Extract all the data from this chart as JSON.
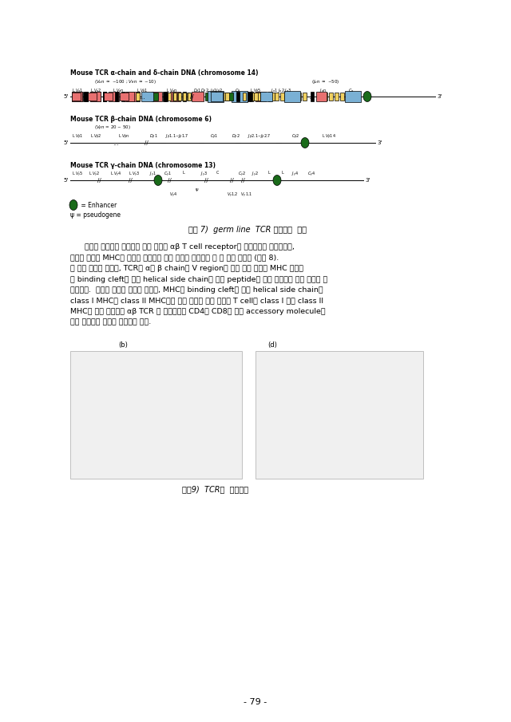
{
  "bg_color": "#ffffff",
  "title1": "Mouse TCR α-chain and δ-chain DNA (chromosome 14)",
  "title2": "Mouse TCR β-chain DNA (chromosome 6)",
  "title3": "Mouse TCR γ-chain DNA (chromosome 13)",
  "figure_caption1": "그림 7)  germ line  TCR 유전자의  구조",
  "figure_caption2": "그림9)  TCR의  입체구조",
  "page_number": "- 79 -",
  "legend1_text": " = Enhancer",
  "legend2_text": "ψ = pseudogene",
  "korean_text": [
    "최근에 세포막에 결합되어 있는 상태의 αβ T cell receptor의 입체구조가 밝혁졌으며,",
    "이들이 어떻게 MHC와 항원을 인식하는 지에 대하여 정확하게 알 수 있게 되었다 (그림 8).",
    "이 연구 결과에 따르면, TCR의 α와 β chain의 V region의 서로 다른 부분이 MHC 단백질",
    "의 binding cleft에 있는 helical side chain과 항원 peptide에 직접 상호작용 하는 것으로 판",
    "안되었다.  이러한 구조를 감안해 본다면, MHC의 binding cleft에 있는 helical side chain은",
    "class I MHC나 class II MHC에서 별로 차이가 없기 때문에 T cell의 class I 이나 class II",
    "MHC에 대한 특이성은 αβ TCR 그 자체보다는 CD4나 CD8과 같은 accessory molecule에",
    "의해 결정되는 것으로 생각되어 진다."
  ],
  "pink": "#e87070",
  "blue": "#7ab0d4",
  "yellow": "#f0d060",
  "green_dark": "#1a6b1a",
  "black": "#000000"
}
